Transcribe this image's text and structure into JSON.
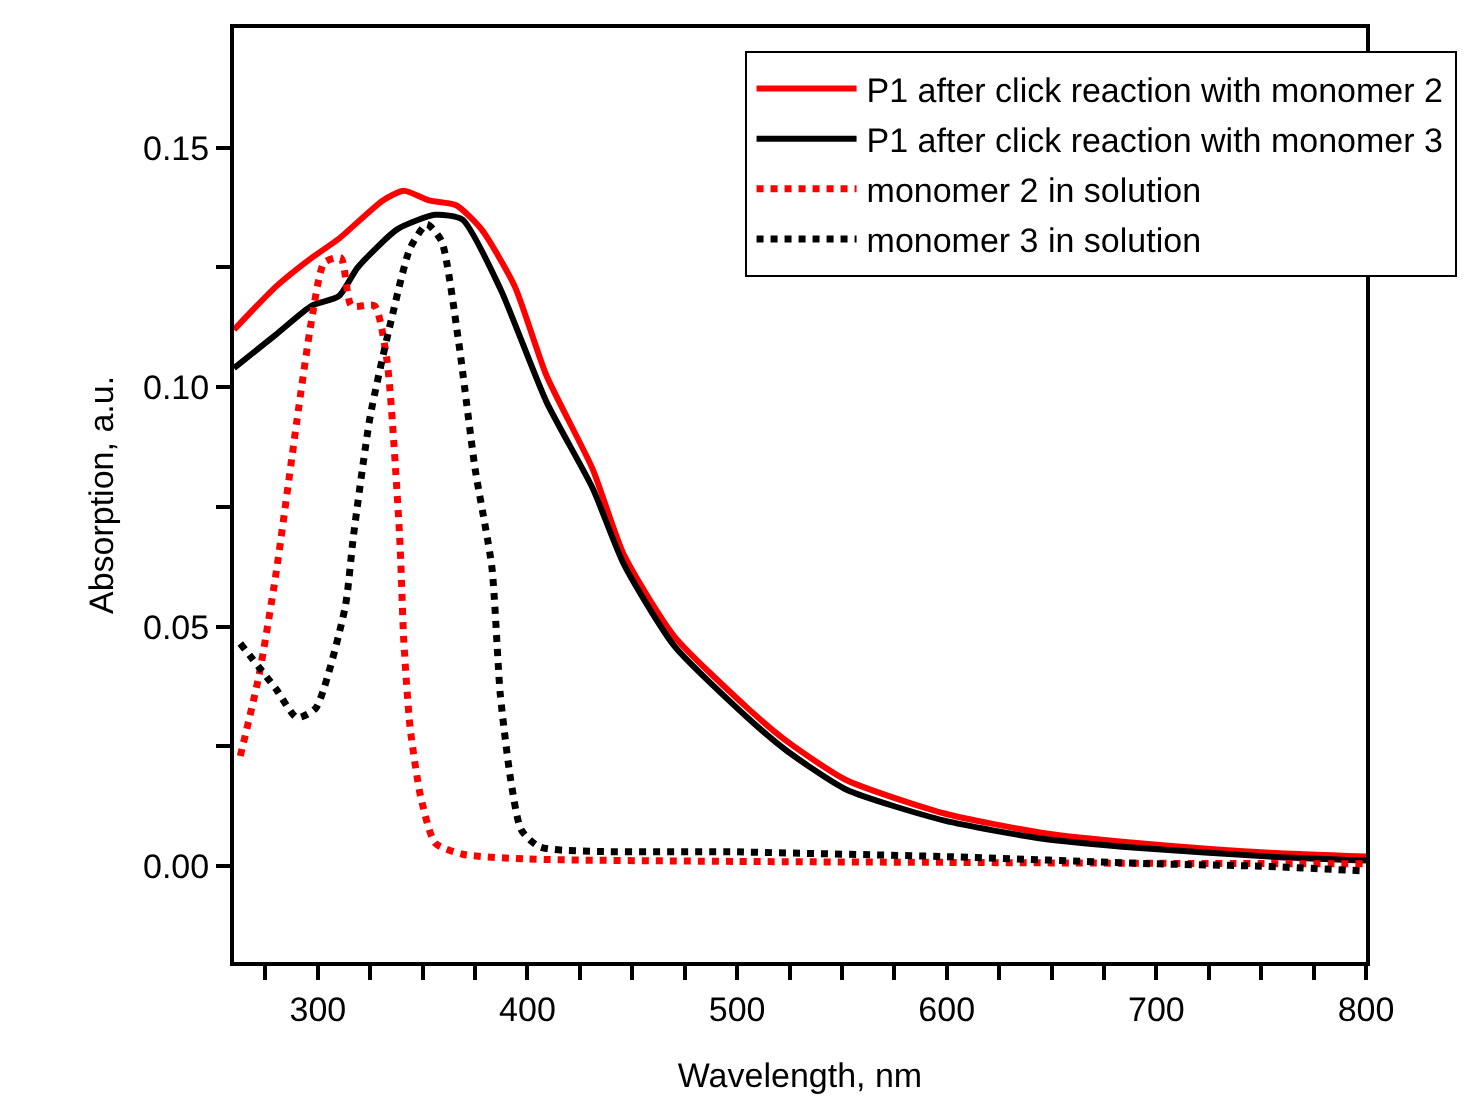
{
  "chart_data": {
    "type": "line",
    "xlabel": "Wavelength, nm",
    "ylabel": "Absorption, a.u.",
    "xlim": [
      260,
      800
    ],
    "ylim": [
      -0.02,
      0.175
    ],
    "xticks": [
      {
        "value": 275,
        "label": null
      },
      300,
      {
        "value": 325,
        "label": null
      },
      400,
      {
        "value": 350,
        "label": null
      },
      {
        "value": 375,
        "label": null
      },
      {
        "value": 425,
        "label": null
      },
      {
        "value": 450,
        "label": null
      },
      {
        "value": 475,
        "label": null
      },
      500,
      {
        "value": 525,
        "label": null
      },
      {
        "value": 550,
        "label": null
      },
      {
        "value": 575,
        "label": null
      },
      600,
      {
        "value": 625,
        "label": null
      },
      {
        "value": 650,
        "label": null
      },
      {
        "value": 675,
        "label": null
      },
      700,
      {
        "value": 725,
        "label": null
      },
      {
        "value": 750,
        "label": null
      },
      {
        "value": 775,
        "label": null
      },
      800
    ],
    "yticks": [
      {
        "value": 0,
        "label": "0.00"
      },
      {
        "value": 0.025,
        "label": null
      },
      {
        "value": 0.05,
        "label": "0.05"
      },
      {
        "value": 0.075,
        "label": null
      },
      {
        "value": 0.1,
        "label": "0.10"
      },
      {
        "value": 0.125,
        "label": null
      },
      {
        "value": 0.15,
        "label": "0.15"
      }
    ],
    "legend": "top right",
    "marker": "none",
    "series": [
      {
        "name": "P1 after click reaction with monomer 2",
        "color": "#ff0000",
        "line_style": "solid",
        "x": [
          260,
          280,
          297,
          310,
          331,
          341,
          353,
          366,
          378,
          394,
          409,
          431,
          446,
          470,
          505,
          524,
          552,
          599,
          645,
          692,
          754,
          800
        ],
        "values": [
          0.112,
          0.121,
          0.127,
          0.131,
          0.139,
          0.141,
          0.139,
          0.138,
          0.133,
          0.121,
          0.1025,
          0.083,
          0.065,
          0.048,
          0.033,
          0.026,
          0.018,
          0.011,
          0.007,
          0.0048,
          0.0028,
          0.002
        ]
      },
      {
        "name": "P1 after click reaction with monomer 3",
        "color": "#000000",
        "line_style": "solid",
        "x": [
          260,
          280,
          297,
          310,
          319,
          338,
          356,
          369,
          387,
          409,
          431,
          446,
          470,
          505,
          524,
          552,
          599,
          645,
          692,
          754,
          800
        ],
        "values": [
          0.104,
          0.111,
          0.117,
          0.119,
          0.125,
          0.133,
          0.136,
          0.135,
          0.1206,
          0.097,
          0.079,
          0.063,
          0.046,
          0.031,
          0.024,
          0.016,
          0.0095,
          0.0058,
          0.0038,
          0.002,
          0.0012
        ]
      },
      {
        "name": "monomer 2 in solution",
        "color": "#ff0000",
        "line_style": "dotted",
        "x": [
          263,
          272,
          280,
          290,
          297,
          303,
          311,
          316,
          327,
          333,
          339,
          341,
          344,
          349,
          356,
          369,
          400,
          500,
          600,
          700,
          800
        ],
        "values": [
          0.023,
          0.04,
          0.061,
          0.093,
          0.114,
          0.126,
          0.127,
          0.117,
          0.117,
          0.1055,
          0.069,
          0.047,
          0.029,
          0.0146,
          0.0048,
          0.0025,
          0.0015,
          0.001,
          0.0008,
          0.0006,
          0.0005
        ]
      },
      {
        "name": "monomer 3 in solution",
        "color": "#000000",
        "line_style": "dotted",
        "x": [
          263,
          280,
          290,
          299,
          313,
          317,
          325,
          335,
          344,
          352,
          359,
          367,
          375,
          383,
          387,
          392,
          397,
          406,
          500,
          600,
          700,
          750,
          800
        ],
        "values": [
          0.0465,
          0.037,
          0.031,
          0.033,
          0.054,
          0.069,
          0.094,
          0.114,
          0.129,
          0.134,
          0.1305,
          0.11,
          0.083,
          0.0625,
          0.036,
          0.018,
          0.0076,
          0.004,
          0.003,
          0.002,
          0.0005,
          0.0,
          -0.001
        ]
      }
    ]
  }
}
